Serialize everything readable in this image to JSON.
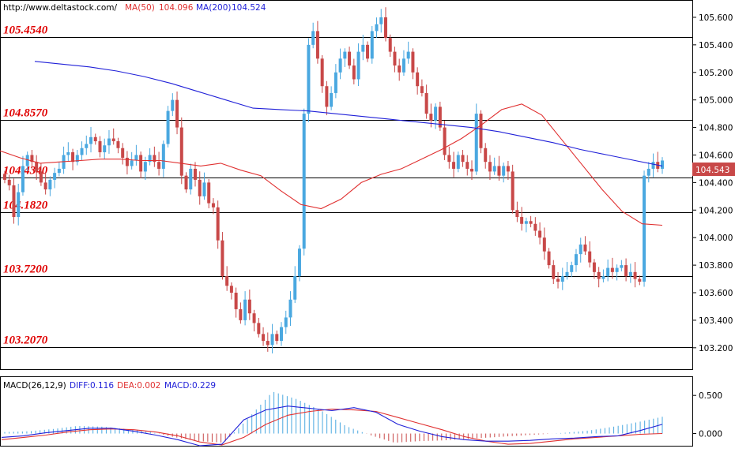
{
  "header": {
    "url": "http://www.deltastock.com/",
    "ma50_label": "MA(50)",
    "ma50_value": "104.096",
    "ma200_label": "MA(200)",
    "ma200_value": "104.524"
  },
  "macd_header": {
    "name": "MACD(26,12,9)",
    "diff": "DIFF:0.116",
    "dea": "DEA:0.002",
    "macd": "MACD:0.229"
  },
  "current_price": "104.543",
  "colors": {
    "up": "#4aa8e0",
    "down": "#c84848",
    "ma50": "#e03030",
    "ma200": "#2020d8",
    "level": "#e00000"
  },
  "chart_data": [
    {
      "type": "candlestick",
      "ylim": [
        103.05,
        105.72
      ],
      "y_ticks": [
        "105.600",
        "105.400",
        "105.200",
        "105.000",
        "104.800",
        "104.600",
        "104.400",
        "104.200",
        "104.000",
        "103.800",
        "103.600",
        "103.400",
        "103.200"
      ],
      "levels": [
        "105.4540",
        "104.8570",
        "104.4340",
        "104.1820",
        "103.7200",
        "103.2070"
      ],
      "series": [
        {
          "name": "MA(50)",
          "values": [
            104.63,
            104.58,
            104.54,
            104.55,
            104.56,
            104.57,
            104.57,
            104.56,
            104.56,
            104.54,
            104.52,
            104.54,
            104.49,
            104.45,
            104.34,
            104.24,
            104.21,
            104.28,
            104.4,
            104.46,
            104.5,
            104.57,
            104.64,
            104.72,
            104.82,
            104.93,
            104.97,
            104.89,
            104.71,
            104.53,
            104.35,
            104.19,
            104.1,
            104.09
          ]
        },
        {
          "name": "MA(200)",
          "values": [
            105.28,
            105.26,
            105.24,
            105.21,
            105.17,
            105.12,
            105.06,
            105.0,
            104.94,
            104.93,
            104.92,
            104.9,
            104.88,
            104.86,
            104.84,
            104.82,
            104.8,
            104.77,
            104.73,
            104.69,
            104.64,
            104.6,
            104.56,
            104.52
          ]
        }
      ],
      "closes": [
        104.42,
        104.38,
        104.15,
        104.33,
        104.52,
        104.6,
        104.55,
        104.48,
        104.4,
        104.35,
        104.42,
        104.47,
        104.5,
        104.6,
        104.62,
        104.55,
        104.6,
        104.65,
        104.68,
        104.73,
        104.7,
        104.62,
        104.67,
        104.72,
        104.7,
        104.65,
        104.58,
        104.52,
        104.56,
        104.6,
        104.48,
        104.55,
        104.6,
        104.55,
        104.5,
        104.68,
        104.92,
        105.0,
        104.8,
        104.45,
        104.35,
        104.5,
        104.42,
        104.3,
        104.4,
        104.25,
        104.22,
        103.98,
        103.72,
        103.65,
        103.6,
        103.48,
        103.4,
        103.55,
        103.45,
        103.38,
        103.3,
        103.25,
        103.22,
        103.3,
        103.25,
        103.35,
        103.42,
        103.55,
        103.72,
        103.92,
        104.9,
        105.4,
        105.5,
        105.3,
        105.1,
        104.95,
        105.05,
        105.2,
        105.3,
        105.35,
        105.25,
        105.15,
        105.35,
        105.4,
        105.3,
        105.5,
        105.55,
        105.6,
        105.45,
        105.35,
        105.25,
        105.2,
        105.3,
        105.35,
        105.2,
        105.1,
        105.05,
        104.9,
        104.85,
        104.95,
        104.8,
        104.6,
        104.55,
        104.5,
        104.6,
        104.55,
        104.5,
        104.48,
        104.9,
        104.65,
        104.55,
        104.48,
        104.52,
        104.45,
        104.52,
        104.48,
        104.2,
        104.15,
        104.1,
        104.12,
        104.1,
        104.05,
        104.0,
        103.9,
        103.8,
        103.7,
        103.68,
        103.72,
        103.75,
        103.8,
        103.88,
        103.95,
        103.9,
        103.82,
        103.75,
        103.7,
        103.72,
        103.78,
        103.75,
        103.78,
        103.8,
        103.72,
        103.75,
        103.7,
        103.68,
        104.45,
        104.5,
        104.55,
        104.5,
        104.56
      ]
    },
    {
      "type": "bar",
      "ylim": [
        -0.16,
        0.74
      ],
      "y_ticks": [
        "0.500",
        "0.000"
      ],
      "series": [
        {
          "name": "DIFF",
          "values": [
            -0.05,
            -0.03,
            0.01,
            0.04,
            0.07,
            0.07,
            0.03,
            -0.02,
            -0.08,
            -0.16,
            -0.14,
            0.18,
            0.31,
            0.36,
            0.33,
            0.3,
            0.34,
            0.28,
            0.12,
            0.03,
            -0.04,
            -0.08,
            -0.1,
            -0.1,
            -0.09,
            -0.07,
            -0.06,
            -0.04,
            -0.03,
            0.04,
            0.12
          ]
        },
        {
          "name": "DEA",
          "values": [
            -0.08,
            -0.05,
            -0.02,
            0.02,
            0.05,
            0.06,
            0.05,
            0.02,
            -0.03,
            -0.11,
            -0.15,
            -0.05,
            0.12,
            0.24,
            0.29,
            0.32,
            0.31,
            0.29,
            0.21,
            0.13,
            0.05,
            -0.04,
            -0.1,
            -0.14,
            -0.13,
            -0.1,
            -0.07,
            -0.05,
            -0.03,
            -0.01,
            0.0
          ]
        },
        {
          "name": "MACD",
          "values": [
            0.02,
            0.03,
            0.06,
            0.1,
            0.09,
            0.06,
            0.02,
            -0.05,
            -0.1,
            -0.12,
            0.2,
            0.55,
            0.45,
            0.3,
            0.1,
            -0.02,
            -0.12,
            -0.1,
            -0.09,
            -0.07,
            -0.05,
            -0.03,
            -0.01,
            0.01,
            0.04,
            0.09,
            0.15,
            0.22
          ]
        }
      ]
    }
  ]
}
